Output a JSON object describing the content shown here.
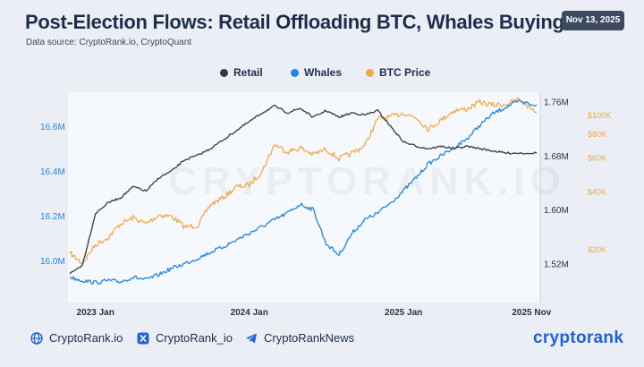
{
  "header": {
    "title": "Post-Election Flows: Retail Offloading BTC, Whales Buying",
    "subtitle": "Data source: CryptoRank.io, CryptoQuant",
    "date_badge": "Nov 13, 2025"
  },
  "watermark": "CRYPTORANK.IO",
  "footer": {
    "links": [
      "CryptoRank.io",
      "CryptoRank_io",
      "CryptoRankNews"
    ],
    "brand": "cryptorank"
  },
  "colors": {
    "retail": "#343a46",
    "whales": "#1e86e0",
    "btc_price": "#f3a94a",
    "brand": "#1f62d6"
  },
  "icons": [
    "globe-icon",
    "x-icon",
    "telegram-icon"
  ],
  "chart_data": {
    "type": "line",
    "title": "Post-Election Flows: Retail Offloading BTC, Whales Buying",
    "legend_position": "top-center",
    "grid": false,
    "x_axis": {
      "ticks": [
        "2023 Jan",
        "2024 Jan",
        "2025 Jan",
        "2025 Nov"
      ],
      "tick_positions": [
        "2023-01-01",
        "2024-01-01",
        "2025-01-01",
        "2025-11-01"
      ],
      "range": [
        "2022-11-01",
        "2025-11-13"
      ]
    },
    "y_left": {
      "ticks": [
        "16.0M",
        "16.2M",
        "16.4M",
        "16.6M"
      ],
      "tick_values": [
        16.0,
        16.2,
        16.4,
        16.6
      ],
      "range": [
        15.82,
        16.74
      ],
      "unit": "M BTC"
    },
    "y_right_inner": {
      "ticks": [
        "1.52M",
        "1.60M",
        "1.68M",
        "1.76M"
      ],
      "tick_values": [
        1.52,
        1.6,
        1.68,
        1.76
      ],
      "range": [
        1.465,
        1.77
      ],
      "unit": "M BTC"
    },
    "y_right_price": {
      "ticks": [
        "$20K",
        "$40K",
        "$60K",
        "$80K",
        "$100K"
      ],
      "tick_values": [
        20,
        40,
        60,
        80,
        100
      ],
      "scale": "log",
      "unit": "$K"
    },
    "series": [
      {
        "name": "Retail",
        "axis": "left",
        "points": [
          [
            "2022-11-01",
            15.94
          ],
          [
            "2022-12-01",
            15.98
          ],
          [
            "2023-01-01",
            16.21
          ],
          [
            "2023-02-01",
            16.26
          ],
          [
            "2023-03-01",
            16.28
          ],
          [
            "2023-04-01",
            16.33
          ],
          [
            "2023-05-01",
            16.31
          ],
          [
            "2023-06-01",
            16.37
          ],
          [
            "2023-07-01",
            16.4
          ],
          [
            "2023-08-01",
            16.45
          ],
          [
            "2023-09-01",
            16.47
          ],
          [
            "2023-10-01",
            16.5
          ],
          [
            "2023-11-01",
            16.54
          ],
          [
            "2023-12-01",
            16.58
          ],
          [
            "2024-01-01",
            16.62
          ],
          [
            "2024-02-01",
            16.66
          ],
          [
            "2024-03-01",
            16.69
          ],
          [
            "2024-04-01",
            16.66
          ],
          [
            "2024-05-01",
            16.68
          ],
          [
            "2024-06-01",
            16.64
          ],
          [
            "2024-07-01",
            16.67
          ],
          [
            "2024-08-01",
            16.64
          ],
          [
            "2024-09-01",
            16.66
          ],
          [
            "2024-10-01",
            16.65
          ],
          [
            "2024-11-01",
            16.67
          ],
          [
            "2024-12-01",
            16.6
          ],
          [
            "2025-01-01",
            16.53
          ],
          [
            "2025-02-01",
            16.51
          ],
          [
            "2025-03-01",
            16.5
          ],
          [
            "2025-04-01",
            16.51
          ],
          [
            "2025-05-01",
            16.5
          ],
          [
            "2025-06-01",
            16.51
          ],
          [
            "2025-07-01",
            16.5
          ],
          [
            "2025-08-01",
            16.49
          ],
          [
            "2025-09-01",
            16.48
          ],
          [
            "2025-10-01",
            16.48
          ],
          [
            "2025-11-13",
            16.48
          ]
        ]
      },
      {
        "name": "Whales",
        "axis": "right_inner",
        "points": [
          [
            "2022-11-01",
            1.5
          ],
          [
            "2022-12-01",
            1.495
          ],
          [
            "2023-01-01",
            1.492
          ],
          [
            "2023-02-01",
            1.495
          ],
          [
            "2023-03-01",
            1.493
          ],
          [
            "2023-04-01",
            1.5
          ],
          [
            "2023-05-01",
            1.496
          ],
          [
            "2023-06-01",
            1.504
          ],
          [
            "2023-07-01",
            1.513
          ],
          [
            "2023-08-01",
            1.52
          ],
          [
            "2023-09-01",
            1.528
          ],
          [
            "2023-10-01",
            1.537
          ],
          [
            "2023-11-01",
            1.545
          ],
          [
            "2023-12-01",
            1.555
          ],
          [
            "2024-01-01",
            1.565
          ],
          [
            "2024-02-01",
            1.575
          ],
          [
            "2024-03-01",
            1.585
          ],
          [
            "2024-04-01",
            1.595
          ],
          [
            "2024-05-01",
            1.608
          ],
          [
            "2024-06-01",
            1.6
          ],
          [
            "2024-07-01",
            1.55
          ],
          [
            "2024-08-01",
            1.533
          ],
          [
            "2024-09-01",
            1.565
          ],
          [
            "2024-10-01",
            1.585
          ],
          [
            "2024-11-01",
            1.595
          ],
          [
            "2024-12-01",
            1.61
          ],
          [
            "2025-01-01",
            1.628
          ],
          [
            "2025-02-01",
            1.648
          ],
          [
            "2025-03-01",
            1.668
          ],
          [
            "2025-04-01",
            1.68
          ],
          [
            "2025-05-01",
            1.692
          ],
          [
            "2025-06-01",
            1.705
          ],
          [
            "2025-07-01",
            1.725
          ],
          [
            "2025-08-01",
            1.742
          ],
          [
            "2025-09-01",
            1.752
          ],
          [
            "2025-10-01",
            1.76
          ],
          [
            "2025-11-13",
            1.755
          ]
        ]
      },
      {
        "name": "BTC Price",
        "axis": "right_price",
        "points": [
          [
            "2022-11-01",
            19
          ],
          [
            "2022-12-01",
            16.8
          ],
          [
            "2023-01-01",
            21
          ],
          [
            "2023-02-01",
            23
          ],
          [
            "2023-03-01",
            27
          ],
          [
            "2023-04-01",
            29
          ],
          [
            "2023-05-01",
            27
          ],
          [
            "2023-06-01",
            30
          ],
          [
            "2023-07-01",
            29.5
          ],
          [
            "2023-08-01",
            26
          ],
          [
            "2023-09-01",
            26.5
          ],
          [
            "2023-10-01",
            34
          ],
          [
            "2023-11-01",
            37
          ],
          [
            "2023-12-01",
            42
          ],
          [
            "2024-01-01",
            43
          ],
          [
            "2024-02-01",
            51
          ],
          [
            "2024-03-01",
            70
          ],
          [
            "2024-04-01",
            64
          ],
          [
            "2024-05-01",
            67
          ],
          [
            "2024-06-01",
            62
          ],
          [
            "2024-07-01",
            66
          ],
          [
            "2024-08-01",
            59
          ],
          [
            "2024-09-01",
            63
          ],
          [
            "2024-10-01",
            69
          ],
          [
            "2024-11-01",
            95
          ],
          [
            "2024-12-01",
            97
          ],
          [
            "2025-01-01",
            102
          ],
          [
            "2025-02-01",
            96
          ],
          [
            "2025-03-01",
            84
          ],
          [
            "2025-04-01",
            94
          ],
          [
            "2025-05-01",
            105
          ],
          [
            "2025-06-01",
            107
          ],
          [
            "2025-07-01",
            116
          ],
          [
            "2025-08-01",
            112
          ],
          [
            "2025-09-01",
            113
          ],
          [
            "2025-10-01",
            120
          ],
          [
            "2025-11-13",
            103
          ]
        ]
      }
    ]
  }
}
